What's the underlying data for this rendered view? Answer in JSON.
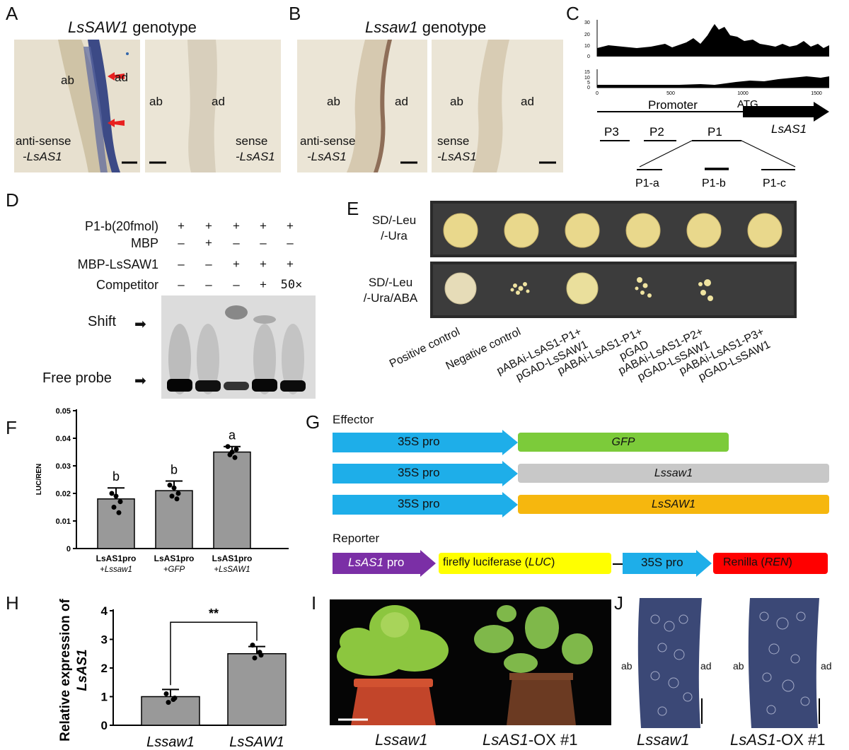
{
  "panel_labels": [
    "A",
    "B",
    "C",
    "D",
    "E",
    "F",
    "G",
    "H",
    "I",
    "J"
  ],
  "panelA": {
    "genotype_prefix": "LsSAW1",
    "genotype_suffix": " genotype",
    "left": {
      "ab": "ab",
      "ad": "ad",
      "probe_line1": "anti-sense",
      "probe_line2": "-LsAS1"
    },
    "right": {
      "ab": "ab",
      "ad": "ad",
      "probe_line1": "sense",
      "probe_line2": "-LsAS1"
    }
  },
  "panelB": {
    "genotype_prefix": "Lssaw1",
    "genotype_suffix": " genotype",
    "left": {
      "ab": "ab",
      "ad": "ad",
      "probe_line1": "anti-sense",
      "probe_line2": "-LsAS1"
    },
    "right": {
      "ab": "ab",
      "ad": "ad",
      "probe_line1": "sense",
      "probe_line2": "-LsAS1"
    }
  },
  "panelC": {
    "track1_ticks": [
      "30",
      "20",
      "10",
      "0"
    ],
    "track2_ticks": [
      "15",
      "10",
      "5",
      "0"
    ],
    "x_ticks": [
      "0",
      "500",
      "1000",
      "1500"
    ],
    "promoter": "Promoter",
    "atg": "ATG",
    "gene": "LsAS1",
    "fragments": [
      "P3",
      "P2",
      "P1"
    ],
    "subfragments": [
      "P1-a",
      "P1-b",
      "P1-c"
    ]
  },
  "panelD": {
    "rows": [
      {
        "label": "P1-b(20fmol)",
        "marks": [
          "+",
          "+",
          "+",
          "+",
          "+"
        ]
      },
      {
        "label": "MBP",
        "marks": [
          "–",
          "+",
          "–",
          "–",
          "–"
        ]
      },
      {
        "label": "MBP-LsSAW1",
        "marks": [
          "–",
          "–",
          "+",
          "+",
          "+"
        ]
      },
      {
        "label": "Competitor",
        "marks": [
          "–",
          "–",
          "–",
          "+",
          "50×"
        ]
      }
    ],
    "shift": "Shift",
    "free_probe": "Free probe"
  },
  "panelE": {
    "row1_line1": "SD/-Leu",
    "row1_line2": "/-Ura",
    "row2_line1": "SD/-Leu",
    "row2_line2": "/-Ura/ABA",
    "columns": [
      {
        "line1": "Positive control",
        "line2": ""
      },
      {
        "line1": "Negative control",
        "line2": ""
      },
      {
        "line1": "pABAi-LsAS1-P1+",
        "line2": "pGAD-LsSAW1"
      },
      {
        "line1": "pABAi-LsAS1-P1+",
        "line2": "pGAD"
      },
      {
        "line1": "pABAi-LsAS1-P2+",
        "line2": "pGAD-LsSAW1"
      },
      {
        "line1": "pABAi-LsAS1-P3+",
        "line2": "pGAD-LsSAW1"
      }
    ]
  },
  "panelG": {
    "effector": "Effector",
    "reporter": "Reporter",
    "promoter": "35S pro",
    "effectors": [
      {
        "gene": "GFP",
        "color": "#7ccb3a"
      },
      {
        "gene": "Lssaw1",
        "color": "#c8c8c8"
      },
      {
        "gene": "LsSAW1",
        "color": "#f6b70e"
      }
    ],
    "reporter_parts": {
      "lsas1_pro_name": "LsAS1",
      "lsas1_pro_suffix": " pro",
      "luc_prefix": "firefly luciferase (",
      "luc_gene": "LUC",
      "luc_suffix": ")",
      "pro35s": "35S pro",
      "ren_prefix": "Renilla (",
      "ren_gene": "REN",
      "ren_suffix": ")"
    },
    "colors": {
      "arrow": "#1eaee9",
      "purple": "#7b2fa6",
      "yellow": "#ffff00",
      "red": "#ff0000"
    }
  },
  "chart_data": [
    {
      "type": "bar",
      "panel": "F",
      "categories": [
        "LsAS1pro +Lssaw1",
        "LsAS1pro +GFP",
        "LsAS1pro +LsSAW1"
      ],
      "cat_line1": [
        "LsAS1pro",
        "LsAS1pro",
        "LsAS1pro"
      ],
      "cat_line2": [
        "+Lssaw1",
        "+GFP",
        "+LsSAW1"
      ],
      "values": [
        0.018,
        0.021,
        0.035
      ],
      "errors": [
        0.004,
        0.0035,
        0.002
      ],
      "points": [
        [
          0.02,
          0.017,
          0.015,
          0.013,
          0.019
        ],
        [
          0.023,
          0.02,
          0.019,
          0.018,
          0.022
        ],
        [
          0.037,
          0.036,
          0.034,
          0.033,
          0.035
        ]
      ],
      "letters": [
        "b",
        "b",
        "a"
      ],
      "ylabel": "LUC/REN",
      "ylim": [
        0,
        0.05
      ],
      "yticks": [
        "0",
        "0.01",
        "0.02",
        "0.03",
        "0.04",
        "0.05"
      ]
    },
    {
      "type": "bar",
      "panel": "H",
      "categories": [
        "Lssaw1",
        "LsSAW1"
      ],
      "values": [
        1.0,
        2.5
      ],
      "errors": [
        0.25,
        0.25
      ],
      "points": [
        [
          1.1,
          0.95,
          0.8,
          0.9
        ],
        [
          2.8,
          2.45,
          2.35,
          2.55
        ]
      ],
      "significance": "**",
      "ylabel_line1": "Relative expression of",
      "ylabel_line2": "LsAS1",
      "ylim": [
        0,
        4
      ],
      "yticks": [
        "0",
        "1",
        "2",
        "3",
        "4"
      ]
    }
  ],
  "panelI": {
    "left": "Lssaw1",
    "right_name": "LsAS1",
    "right_suffix": "-OX #1"
  },
  "panelJ": {
    "left": "Lssaw1",
    "right_name": "LsAS1",
    "right_suffix": "-OX #1",
    "ab": "ab",
    "ad": "ad"
  }
}
